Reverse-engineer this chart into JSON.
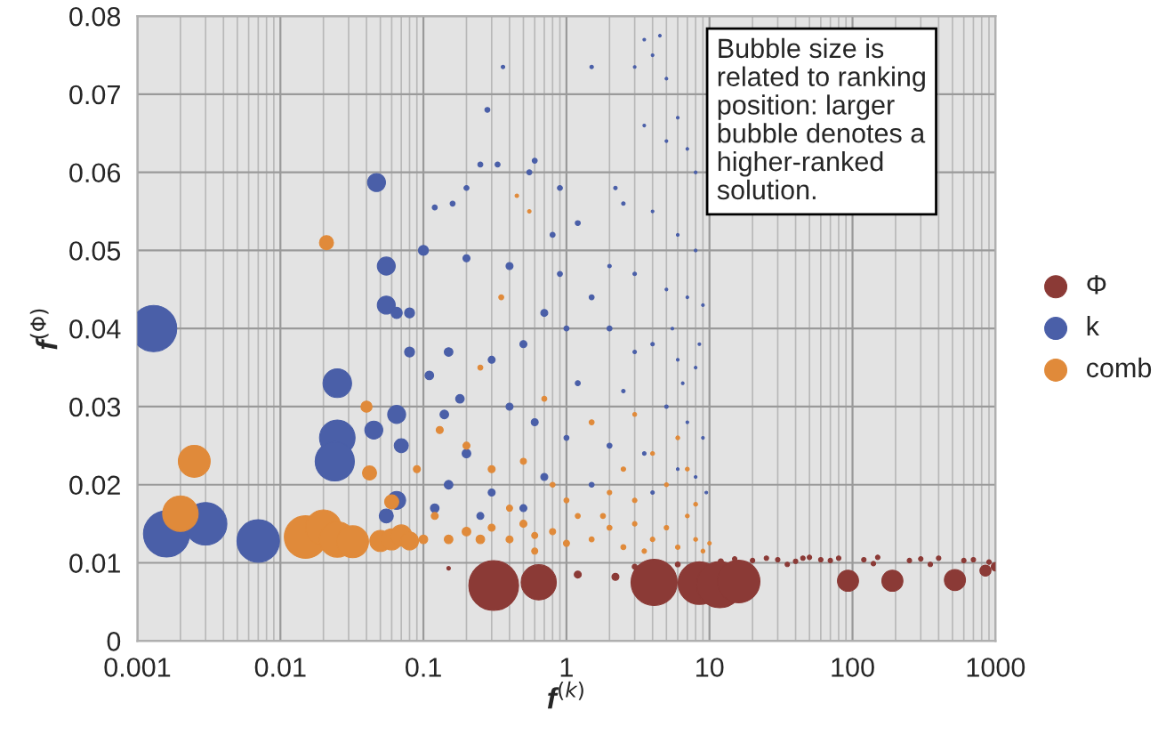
{
  "chart_data": {
    "type": "bubble",
    "xlabel": "f$^{(k)}$",
    "ylabel": "f$^{(Φ)}$",
    "annotations": [
      "Bubble size is\nrelated to ranking\nposition: larger\nbubble denotes a\nhigher-ranked\nsolution."
    ],
    "log": "x",
    "xlim": [
      0.001,
      1000
    ],
    "xticks": [
      0.001,
      0.01,
      0.1,
      1,
      10,
      100,
      1000
    ],
    "ylim": [
      0,
      0.08
    ],
    "yticks": [
      0,
      0.01,
      0.02,
      0.03,
      0.04,
      0.05,
      0.06,
      0.07,
      0.08
    ],
    "grid": true,
    "legend": "right",
    "marker": "circle",
    "series": [
      {
        "name": "Φ",
        "color": "#8b3a36",
        "x": [
          0.31,
          0.64,
          4.1,
          8.5,
          11.8,
          16,
          1.2,
          2.2,
          0.15,
          93,
          190,
          520,
          850,
          3,
          6,
          12,
          15,
          20,
          25,
          30,
          40,
          50,
          60,
          70,
          80,
          120,
          150,
          250,
          300,
          400,
          600,
          700,
          1000,
          35,
          45,
          140,
          350,
          900
        ],
        "values": [
          0.0071,
          0.0075,
          0.0075,
          0.0074,
          0.0072,
          0.0076,
          0.0085,
          0.0082,
          0.0093,
          0.0077,
          0.0077,
          0.0078,
          0.009,
          0.0095,
          0.0098,
          0.0102,
          0.0105,
          0.0103,
          0.0106,
          0.0104,
          0.0102,
          0.0107,
          0.0104,
          0.0103,
          0.0106,
          0.0104,
          0.0107,
          0.0103,
          0.0105,
          0.0106,
          0.0103,
          0.0104,
          0.0095,
          0.0098,
          0.0106,
          0.0099,
          0.0098,
          0.0101
        ],
        "sizes": [
          1,
          0.5,
          0.86,
          0.73,
          0.86,
          0.73,
          0.02,
          0.02,
          0.005,
          0.18,
          0.18,
          0.18,
          0.05,
          0.01,
          0.01,
          0.01,
          0.008,
          0.008,
          0.008,
          0.008,
          0.008,
          0.008,
          0.008,
          0.008,
          0.008,
          0.008,
          0.008,
          0.008,
          0.008,
          0.008,
          0.008,
          0.008,
          0.03,
          0.008,
          0.008,
          0.008,
          0.008,
          0.008
        ]
      },
      {
        "name": "k",
        "color": "#4a5fa8",
        "x": [
          0.0013,
          0.0016,
          0.003,
          0.007,
          0.025,
          0.025,
          0.024,
          0.047,
          0.055,
          0.055,
          0.045,
          0.065,
          0.07,
          0.065,
          0.055,
          0.36,
          0.28,
          1.5,
          0.25,
          0.33,
          0.2,
          0.55,
          0.6,
          0.9,
          0.16,
          0.12,
          0.2,
          0.4,
          0.1,
          0.8,
          1.2,
          2.2,
          3.5,
          4.5,
          3,
          4,
          5,
          6,
          3.5,
          5,
          7,
          8,
          2.5,
          4,
          6,
          8,
          2,
          3,
          5,
          7,
          9,
          1.5,
          0.7,
          1,
          2,
          3,
          4,
          6,
          8,
          0.5,
          0.3,
          0.15,
          0.08,
          0.08,
          0.065,
          1.2,
          2.5,
          5,
          7,
          9,
          0.4,
          0.6,
          1,
          2,
          3.5,
          6,
          8,
          9.5,
          0.2,
          0.15,
          0.3,
          0.7,
          1.5,
          4,
          0.12,
          0.25,
          0.5,
          0.18,
          0.14,
          0.11,
          6.5,
          8.5,
          5.5,
          0.9
        ],
        "values": [
          0.04,
          0.0137,
          0.015,
          0.0128,
          0.033,
          0.026,
          0.023,
          0.0587,
          0.048,
          0.043,
          0.027,
          0.029,
          0.025,
          0.018,
          0.016,
          0.0735,
          0.068,
          0.0735,
          0.061,
          0.061,
          0.058,
          0.06,
          0.0615,
          0.058,
          0.056,
          0.0555,
          0.049,
          0.048,
          0.05,
          0.052,
          0.0535,
          0.058,
          0.077,
          0.0775,
          0.0735,
          0.075,
          0.072,
          0.067,
          0.066,
          0.064,
          0.063,
          0.06,
          0.056,
          0.055,
          0.052,
          0.05,
          0.048,
          0.047,
          0.045,
          0.044,
          0.043,
          0.044,
          0.042,
          0.04,
          0.04,
          0.037,
          0.038,
          0.036,
          0.035,
          0.038,
          0.036,
          0.037,
          0.037,
          0.042,
          0.042,
          0.033,
          0.032,
          0.03,
          0.028,
          0.026,
          0.03,
          0.028,
          0.026,
          0.025,
          0.024,
          0.022,
          0.021,
          0.019,
          0.024,
          0.02,
          0.019,
          0.021,
          0.02,
          0.019,
          0.017,
          0.016,
          0.017,
          0.031,
          0.029,
          0.034,
          0.033,
          0.038,
          0.04,
          0.047
        ],
        "sizes": [
          0.86,
          0.86,
          0.73,
          0.73,
          0.33,
          0.51,
          0.62,
          0.13,
          0.13,
          0.13,
          0.13,
          0.13,
          0.08,
          0.13,
          0.08,
          0.005,
          0.01,
          0.005,
          0.01,
          0.01,
          0.01,
          0.01,
          0.01,
          0.01,
          0.01,
          0.01,
          0.02,
          0.02,
          0.04,
          0.01,
          0.01,
          0.005,
          0.003,
          0.003,
          0.003,
          0.003,
          0.003,
          0.003,
          0.003,
          0.003,
          0.003,
          0.003,
          0.005,
          0.003,
          0.003,
          0.003,
          0.005,
          0.005,
          0.003,
          0.003,
          0.003,
          0.01,
          0.02,
          0.01,
          0.01,
          0.005,
          0.005,
          0.003,
          0.003,
          0.02,
          0.02,
          0.03,
          0.04,
          0.04,
          0.05,
          0.01,
          0.005,
          0.005,
          0.003,
          0.003,
          0.02,
          0.02,
          0.01,
          0.01,
          0.005,
          0.003,
          0.003,
          0.003,
          0.03,
          0.03,
          0.02,
          0.02,
          0.01,
          0.005,
          0.03,
          0.02,
          0.02,
          0.03,
          0.03,
          0.03,
          0.003,
          0.003,
          0.003,
          0.01
        ]
      },
      {
        "name": "comb",
        "color": "#e08a3a",
        "x": [
          0.0025,
          0.002,
          0.015,
          0.02,
          0.025,
          0.032,
          0.05,
          0.06,
          0.07,
          0.08,
          0.021,
          0.04,
          0.042,
          0.06,
          0.1,
          0.12,
          0.15,
          0.2,
          0.25,
          0.3,
          0.4,
          0.5,
          0.6,
          0.8,
          1,
          1.2,
          1.5,
          2,
          2.5,
          3,
          4,
          5,
          6,
          7,
          8,
          9,
          10,
          1,
          2,
          3,
          5,
          7,
          4,
          2.5,
          0.8,
          0.5,
          0.3,
          0.2,
          0.13,
          0.09,
          1.5,
          3,
          0.7,
          0.35,
          0.45,
          0.55,
          0.25,
          6,
          1.8,
          0.4,
          0.6,
          3.5,
          8
        ],
        "values": [
          0.023,
          0.0163,
          0.0133,
          0.0145,
          0.013,
          0.0127,
          0.0128,
          0.013,
          0.0135,
          0.0128,
          0.051,
          0.03,
          0.0215,
          0.0178,
          0.013,
          0.016,
          0.013,
          0.014,
          0.013,
          0.0145,
          0.013,
          0.015,
          0.0135,
          0.014,
          0.0125,
          0.016,
          0.013,
          0.0145,
          0.012,
          0.015,
          0.013,
          0.0145,
          0.012,
          0.016,
          0.013,
          0.0115,
          0.0125,
          0.018,
          0.019,
          0.018,
          0.02,
          0.022,
          0.024,
          0.022,
          0.02,
          0.023,
          0.022,
          0.025,
          0.027,
          0.022,
          0.028,
          0.029,
          0.031,
          0.044,
          0.057,
          0.055,
          0.035,
          0.026,
          0.016,
          0.017,
          0.0115,
          0.0115,
          0.0175
        ],
        "sizes": [
          0.41,
          0.51,
          0.73,
          0.51,
          0.51,
          0.41,
          0.18,
          0.18,
          0.18,
          0.13,
          0.08,
          0.05,
          0.08,
          0.08,
          0.03,
          0.02,
          0.03,
          0.03,
          0.03,
          0.02,
          0.02,
          0.02,
          0.015,
          0.015,
          0.015,
          0.01,
          0.01,
          0.01,
          0.01,
          0.008,
          0.008,
          0.008,
          0.008,
          0.006,
          0.006,
          0.006,
          0.005,
          0.01,
          0.008,
          0.008,
          0.006,
          0.006,
          0.006,
          0.008,
          0.01,
          0.015,
          0.02,
          0.02,
          0.02,
          0.02,
          0.01,
          0.006,
          0.01,
          0.01,
          0.005,
          0.005,
          0.01,
          0.006,
          0.01,
          0.015,
          0.015,
          0.008,
          0.006
        ]
      }
    ]
  }
}
